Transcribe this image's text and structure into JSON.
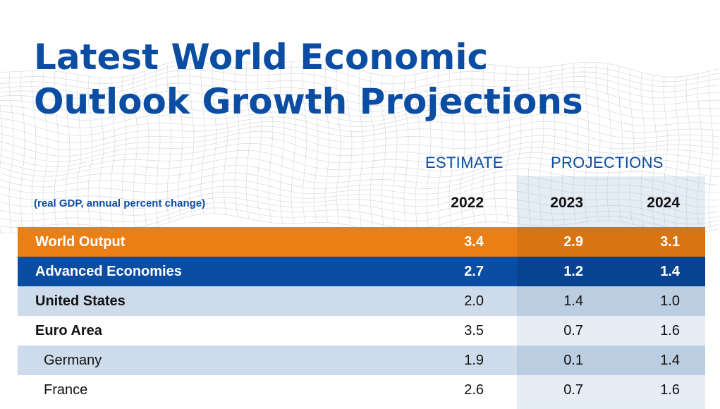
{
  "title_lines": [
    "Latest World Economic",
    "Outlook Growth Projections"
  ],
  "subtitle": "(real GDP, annual percent change)",
  "column_groups": {
    "estimate": "ESTIMATE",
    "projections": "PROJECTIONS"
  },
  "years": [
    "2022",
    "2023",
    "2024"
  ],
  "colors": {
    "title_blue": "#0b4da2",
    "world_output_orange": "#ec7e16",
    "advanced_blue": "#0b4da2",
    "light_row": "#cddbea"
  },
  "chart_data": {
    "type": "table",
    "title": "Latest World Economic Outlook Growth Projections",
    "subtitle": "(real GDP, annual percent change)",
    "columns": [
      "2022",
      "2023",
      "2024"
    ],
    "column_groups": [
      {
        "label": "ESTIMATE",
        "columns": [
          "2022"
        ]
      },
      {
        "label": "PROJECTIONS",
        "columns": [
          "2023",
          "2024"
        ]
      }
    ],
    "rows": [
      {
        "label": "World Output",
        "style": "orange",
        "values": [
          "3.4",
          "2.9",
          "3.1"
        ]
      },
      {
        "label": "Advanced Economies",
        "style": "blue",
        "values": [
          "2.7",
          "1.2",
          "1.4"
        ]
      },
      {
        "label": "United States",
        "style": "light-bold",
        "values": [
          "2.0",
          "1.4",
          "1.0"
        ]
      },
      {
        "label": "Euro Area",
        "style": "white-bold",
        "values": [
          "3.5",
          "0.7",
          "1.6"
        ]
      },
      {
        "label": "Germany",
        "style": "light-indent",
        "values": [
          "1.9",
          "0.1",
          "1.4"
        ]
      },
      {
        "label": "France",
        "style": "white-indent",
        "values": [
          "2.6",
          "0.7",
          "1.6"
        ]
      }
    ]
  }
}
